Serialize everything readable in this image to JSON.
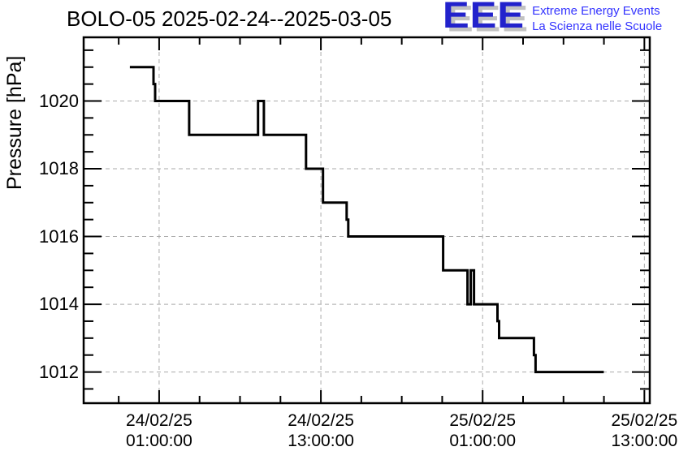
{
  "logo": {
    "acronym": "EEE",
    "line1": "Extreme Energy Events",
    "line2": "La Scienza nelle Scuole",
    "acronym_color": "#2222cc",
    "text_color": "#3333ff",
    "shadow_color": "#c2c2c2"
  },
  "colors": {
    "line": "#000000",
    "frame": "#000000",
    "grid": "#aaaaaa",
    "background": "#ffffff"
  },
  "chart_data": {
    "type": "line",
    "line_style": "step-after",
    "title": "BOLO-05 2025-02-24--2025-03-05",
    "xlabel": "",
    "ylabel": "Pressure [hPa]",
    "x_unit": "hours since 24/02/25 00:00:00",
    "xlim": [
      -4.6,
      37.4
    ],
    "ylim": [
      1011.08,
      1021.88
    ],
    "grid": "dashed at major ticks, both axes",
    "legend": "none",
    "x_major_ticks": [
      {
        "hour": 1,
        "date": "24/02/25",
        "time": "01:00:00"
      },
      {
        "hour": 13,
        "date": "24/02/25",
        "time": "13:00:00"
      },
      {
        "hour": 25,
        "date": "25/02/25",
        "time": "01:00:00"
      },
      {
        "hour": 37,
        "date": "25/02/25",
        "time": "13:00:00"
      }
    ],
    "x_minor_step_hours": 3,
    "y_major_ticks": [
      {
        "value": 1012,
        "label": "1012"
      },
      {
        "value": 1014,
        "label": "1014"
      },
      {
        "value": 1016,
        "label": "1016"
      },
      {
        "value": 1018,
        "label": "1018"
      },
      {
        "value": 1020,
        "label": "1020"
      }
    ],
    "y_minor_step": 0.5,
    "points": [
      [
        -1.17,
        1021
      ],
      [
        0.58,
        1020.5
      ],
      [
        0.7,
        1020
      ],
      [
        3.23,
        1019
      ],
      [
        8.34,
        1020
      ],
      [
        8.77,
        1019
      ],
      [
        11.9,
        1018
      ],
      [
        13.16,
        1017
      ],
      [
        14.91,
        1016.5
      ],
      [
        15.03,
        1016
      ],
      [
        22.07,
        1015
      ],
      [
        23.88,
        1014
      ],
      [
        24.12,
        1015
      ],
      [
        24.36,
        1014
      ],
      [
        26.1,
        1013.5
      ],
      [
        26.22,
        1013
      ],
      [
        28.81,
        1012.5
      ],
      [
        28.93,
        1012
      ]
    ],
    "end_hour": 33.99
  }
}
